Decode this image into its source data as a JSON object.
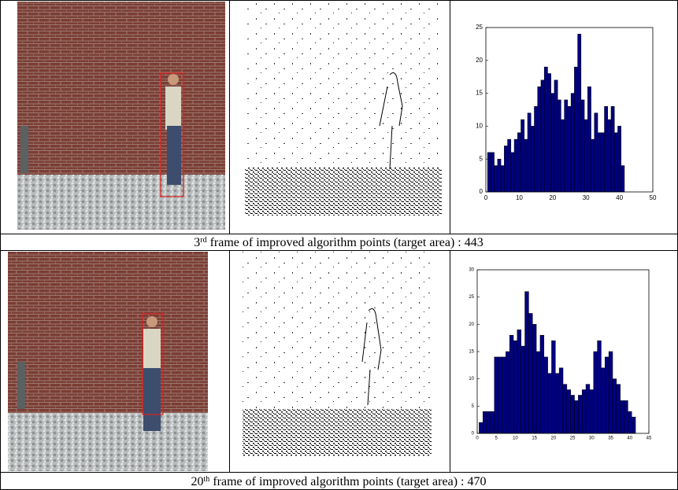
{
  "captions": [
    {
      "ordinal": "3",
      "suffix": "rd",
      "text": " frame of improved algorithm points (target area) : 443"
    },
    {
      "ordinal": "20",
      "suffix": "th",
      "text": " frame of improved algorithm points (target area) : 470"
    }
  ],
  "chart_data": [
    {
      "type": "bar",
      "color": "#000080",
      "x": [
        1,
        2,
        3,
        4,
        5,
        6,
        7,
        8,
        9,
        10,
        11,
        12,
        13,
        14,
        15,
        16,
        17,
        18,
        19,
        20,
        21,
        22,
        23,
        24,
        25,
        26,
        27,
        28,
        29,
        30,
        31,
        32,
        33,
        34,
        35,
        36,
        37,
        38,
        39,
        40,
        41
      ],
      "values": [
        6,
        6,
        4,
        5,
        4,
        7,
        8,
        6,
        8,
        9,
        11,
        8,
        12,
        10,
        13,
        16,
        17,
        19,
        18,
        15,
        17,
        14,
        11,
        14,
        13,
        15,
        19,
        24,
        14,
        11,
        16,
        8,
        12,
        9,
        9,
        13,
        11,
        13,
        9,
        10,
        4
      ],
      "xlim": [
        0,
        50
      ],
      "xticks": [
        0,
        10,
        20,
        30,
        40,
        50
      ],
      "ylim": [
        0,
        25
      ],
      "yticks": [
        0,
        5,
        10,
        15,
        20,
        25
      ]
    },
    {
      "type": "bar",
      "color": "#000080",
      "x": [
        1,
        2,
        3,
        4,
        5,
        6,
        7,
        8,
        9,
        10,
        11,
        12,
        13,
        14,
        15,
        16,
        17,
        18,
        19,
        20,
        21,
        22,
        23,
        24,
        25,
        26,
        27,
        28,
        29,
        30,
        31,
        32,
        33,
        34,
        35,
        36,
        37,
        38,
        39,
        40,
        41
      ],
      "values": [
        2,
        4,
        4,
        4,
        14,
        14,
        14,
        15,
        18,
        17,
        19,
        16,
        26,
        22,
        20,
        15,
        18,
        14,
        11,
        17,
        11,
        12,
        9,
        8,
        7,
        6,
        7,
        8,
        9,
        8,
        15,
        17,
        12,
        14,
        15,
        10,
        9,
        6,
        6,
        4,
        3
      ],
      "xlim": [
        0,
        45
      ],
      "xticks": [
        0,
        5,
        10,
        15,
        20,
        25,
        30,
        35,
        40,
        45
      ],
      "ylim": [
        0,
        30
      ],
      "yticks": [
        0,
        5,
        10,
        15,
        20,
        25,
        30
      ]
    }
  ]
}
